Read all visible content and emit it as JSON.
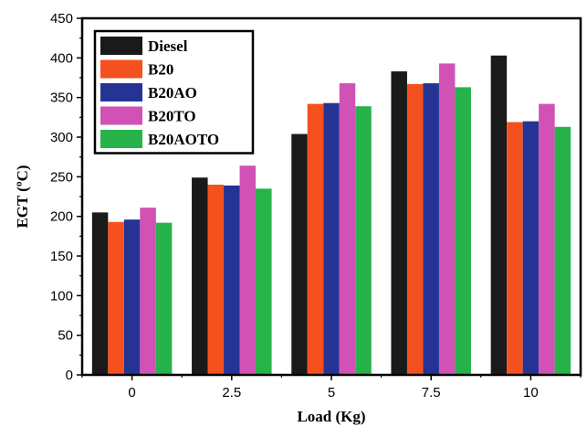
{
  "chart_data": {
    "type": "bar",
    "title": "",
    "xlabel": "Load (Kg)",
    "ylabel": "EGT (ºC)",
    "ylim": [
      0,
      450
    ],
    "yticks": [
      0,
      50,
      100,
      150,
      200,
      250,
      300,
      350,
      400,
      450
    ],
    "categories": [
      "0",
      "2.5",
      "5",
      "7.5",
      "10"
    ],
    "legend_position": "top-left",
    "grid": false,
    "series": [
      {
        "name": "Diesel",
        "color": "#1a1a1a",
        "values": [
          205,
          249,
          304,
          383,
          403
        ]
      },
      {
        "name": "B20",
        "color": "#f4511e",
        "values": [
          193,
          240,
          342,
          367,
          319
        ]
      },
      {
        "name": "B20AO",
        "color": "#253494",
        "values": [
          196,
          239,
          343,
          368,
          320
        ]
      },
      {
        "name": "B20TO",
        "color": "#d152b4",
        "values": [
          211,
          264,
          368,
          393,
          342
        ]
      },
      {
        "name": "B20AOTO",
        "color": "#27b24a",
        "values": [
          192,
          235,
          339,
          363,
          313
        ]
      }
    ]
  }
}
